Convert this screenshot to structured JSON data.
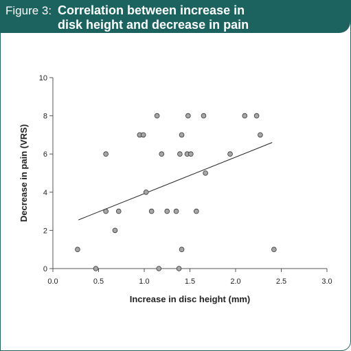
{
  "header": {
    "figure_label": "Figure 3:",
    "title_line1": "Correlation between increase in",
    "title_line2": "disk height and decrease in pain"
  },
  "colors": {
    "header_bg": "#1c6360",
    "point_fill": "#a6a6a6",
    "point_stroke": "#333333",
    "axis": "#555555"
  },
  "chart_data": {
    "type": "scatter",
    "title": "Correlation between increase in disk height and decrease in pain",
    "xlabel": "Increase in disc height (mm)",
    "ylabel": "Decrease in pain (VRS)",
    "xlim": [
      0,
      3
    ],
    "ylim": [
      0,
      10
    ],
    "xticks": [
      "0.0",
      "0.5",
      "1.0",
      "1.5",
      "2.0",
      "2.5",
      "3.0"
    ],
    "xtick_values": [
      0,
      0.5,
      1.0,
      1.5,
      2.0,
      2.5,
      3.0
    ],
    "yticks": [
      "0",
      "2",
      "4",
      "6",
      "8",
      "10"
    ],
    "ytick_values": [
      0,
      2,
      4,
      6,
      8,
      10
    ],
    "grid": false,
    "points": [
      {
        "x": 0.27,
        "y": 1
      },
      {
        "x": 0.47,
        "y": 0
      },
      {
        "x": 0.58,
        "y": 6
      },
      {
        "x": 0.58,
        "y": 3
      },
      {
        "x": 0.68,
        "y": 2
      },
      {
        "x": 0.72,
        "y": 3
      },
      {
        "x": 0.95,
        "y": 7
      },
      {
        "x": 0.99,
        "y": 7
      },
      {
        "x": 1.02,
        "y": 4
      },
      {
        "x": 1.08,
        "y": 3
      },
      {
        "x": 1.14,
        "y": 8
      },
      {
        "x": 1.16,
        "y": 0
      },
      {
        "x": 1.19,
        "y": 6
      },
      {
        "x": 1.25,
        "y": 3
      },
      {
        "x": 1.35,
        "y": 3
      },
      {
        "x": 1.38,
        "y": 0
      },
      {
        "x": 1.39,
        "y": 6
      },
      {
        "x": 1.41,
        "y": 1
      },
      {
        "x": 1.41,
        "y": 7
      },
      {
        "x": 1.47,
        "y": 6
      },
      {
        "x": 1.48,
        "y": 8
      },
      {
        "x": 1.51,
        "y": 6
      },
      {
        "x": 1.57,
        "y": 3
      },
      {
        "x": 1.65,
        "y": 8
      },
      {
        "x": 1.67,
        "y": 5
      },
      {
        "x": 1.94,
        "y": 6
      },
      {
        "x": 2.1,
        "y": 8
      },
      {
        "x": 2.23,
        "y": 8
      },
      {
        "x": 2.27,
        "y": 7
      },
      {
        "x": 2.42,
        "y": 1
      }
    ],
    "trendline": {
      "x": [
        0.28,
        2.4
      ],
      "y": [
        2.55,
        6.6
      ]
    }
  }
}
